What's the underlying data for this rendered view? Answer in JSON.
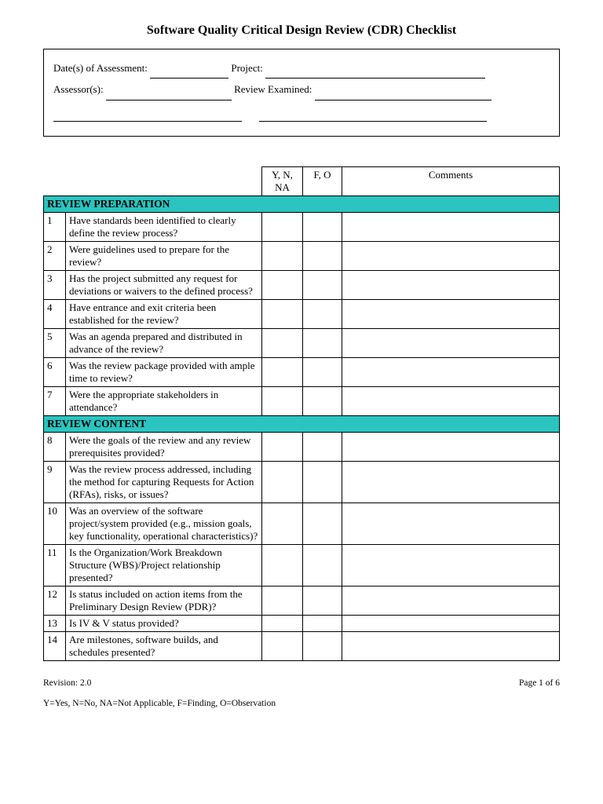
{
  "title": "Software Quality Critical Design Review (CDR) Checklist",
  "info": {
    "date_label": "Date(s) of Assessment:",
    "project_label": "Project:",
    "assessor_label": "Assessor(s):",
    "review_label": "Review Examined:"
  },
  "columns": {
    "yn": "Y, N, NA",
    "fo": "F, O",
    "comments": "Comments"
  },
  "section1": {
    "heading": "REVIEW PREPARATION",
    "header_bg": "#2bc4c0",
    "items": [
      {
        "n": "1",
        "q": "Have standards been identified to clearly define the review process?"
      },
      {
        "n": "2",
        "q": "Were guidelines used to prepare for the review?"
      },
      {
        "n": "3",
        "q": "Has the project submitted any request for deviations or waivers to the defined process?"
      },
      {
        "n": "4",
        "q": "Have entrance and exit criteria been established for the review?"
      },
      {
        "n": "5",
        "q": "Was an agenda prepared and distributed in advance of the review?"
      },
      {
        "n": "6",
        "q": "Was the review package provided with ample time to review?"
      },
      {
        "n": "7",
        "q": "Were the appropriate stakeholders in attendance?"
      }
    ]
  },
  "section2": {
    "heading": "REVIEW CONTENT",
    "header_bg": "#2bc4c0",
    "items": [
      {
        "n": "8",
        "q": "Were the goals of the review and any review prerequisites provided?"
      },
      {
        "n": "9",
        "q": "Was the review process addressed, including the method for capturing Requests for Action (RFAs), risks, or issues?"
      },
      {
        "n": "10",
        "q": "Was an overview of the software project/system provided (e.g., mission goals, key functionality, operational characteristics)?"
      },
      {
        "n": "11",
        "q": "Is the Organization/Work Breakdown Structure (WBS)/Project relationship presented?"
      },
      {
        "n": "12",
        "q": "Is status included on action items from the Preliminary Design Review (PDR)?"
      },
      {
        "n": "13",
        "q": "Is IV & V status provided?"
      },
      {
        "n": "14",
        "q": "Are milestones, software builds, and schedules presented?"
      }
    ]
  },
  "footer": {
    "revision": "Revision: 2.0",
    "page": "Page 1 of 6",
    "legend": "Y=Yes, N=No, NA=Not Applicable, F=Finding, O=Observation"
  }
}
